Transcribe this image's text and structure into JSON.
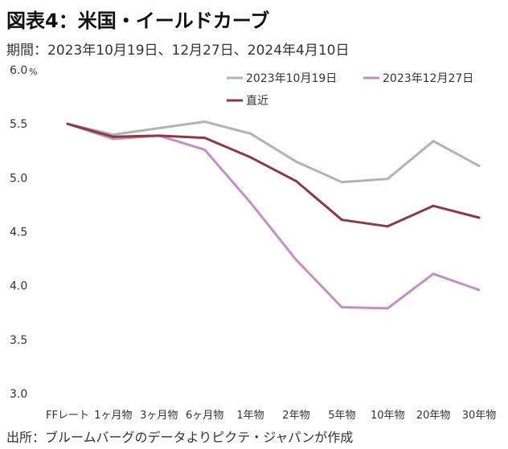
{
  "header": {
    "title": "図表4：米国・イールドカーブ",
    "subtitle": "期間：2023年10月19日、12月27日、2024年4月10日"
  },
  "footer": {
    "source": "出所：ブルームバーグのデータよりピクテ・ジャパンが作成"
  },
  "chart_data": {
    "type": "line",
    "unit_label": "%",
    "categories": [
      "FFレート",
      "1ヶ月物",
      "3ヶ月物",
      "6ヶ月物",
      "1年物",
      "2年物",
      "5年物",
      "10年物",
      "20年物",
      "30年物"
    ],
    "yticks": [
      "3.0",
      "3.5",
      "4.0",
      "4.5",
      "5.0",
      "5.5",
      "6.0"
    ],
    "ylim": [
      3.0,
      6.0
    ],
    "grid": false,
    "legend_position": "top-right",
    "series": [
      {
        "name": "2023年10月19日",
        "color": "#b3b3b3",
        "values": [
          5.5,
          5.4,
          5.46,
          5.52,
          5.41,
          5.15,
          4.96,
          4.99,
          5.34,
          5.11
        ]
      },
      {
        "name": "2023年12月27日",
        "color": "#c28fc8",
        "values": [
          5.5,
          5.36,
          5.39,
          5.26,
          4.77,
          4.24,
          3.8,
          3.79,
          4.11,
          3.96
        ]
      },
      {
        "name": "直近",
        "color": "#8b3a44",
        "values": [
          5.5,
          5.38,
          5.39,
          5.37,
          5.19,
          4.97,
          4.61,
          4.55,
          4.74,
          4.63
        ]
      }
    ]
  }
}
